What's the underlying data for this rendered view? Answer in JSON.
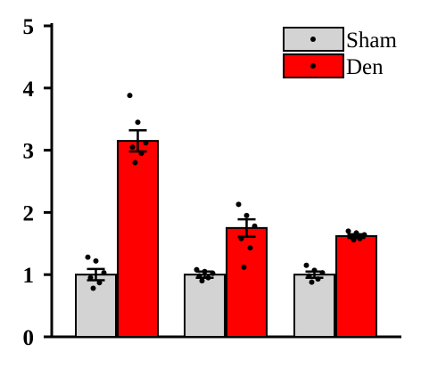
{
  "chart_data": {
    "type": "bar",
    "title": "",
    "xlabel": "",
    "ylabel": "",
    "ylim": [
      0,
      5
    ],
    "yticks": [
      "0",
      "1",
      "2",
      "3",
      "4",
      "5"
    ],
    "categories": [
      "",
      "",
      ""
    ],
    "legend_position": "top-right",
    "grid": false,
    "series": [
      {
        "name": "Sham",
        "color": "#d3d3d3",
        "values": [
          1.0,
          1.0,
          1.0
        ],
        "sem": [
          0.09,
          0.05,
          0.05
        ],
        "points": [
          [
            1.28,
            1.22,
            1.03,
            0.95,
            0.87,
            0.78
          ],
          [
            1.08,
            1.05,
            1.02,
            0.98,
            0.95,
            0.9
          ],
          [
            1.15,
            1.07,
            1.03,
            0.98,
            0.93,
            0.88
          ]
        ]
      },
      {
        "name": "Den",
        "color": "#ff0000",
        "values": [
          3.15,
          1.75,
          1.62
        ],
        "sem": [
          0.17,
          0.14,
          0.03
        ],
        "points": [
          [
            3.88,
            3.45,
            3.12,
            3.05,
            2.95,
            2.8
          ],
          [
            2.13,
            1.95,
            1.78,
            1.58,
            1.43,
            1.12
          ],
          [
            1.7,
            1.67,
            1.64,
            1.61,
            1.58,
            1.56
          ]
        ]
      }
    ]
  }
}
